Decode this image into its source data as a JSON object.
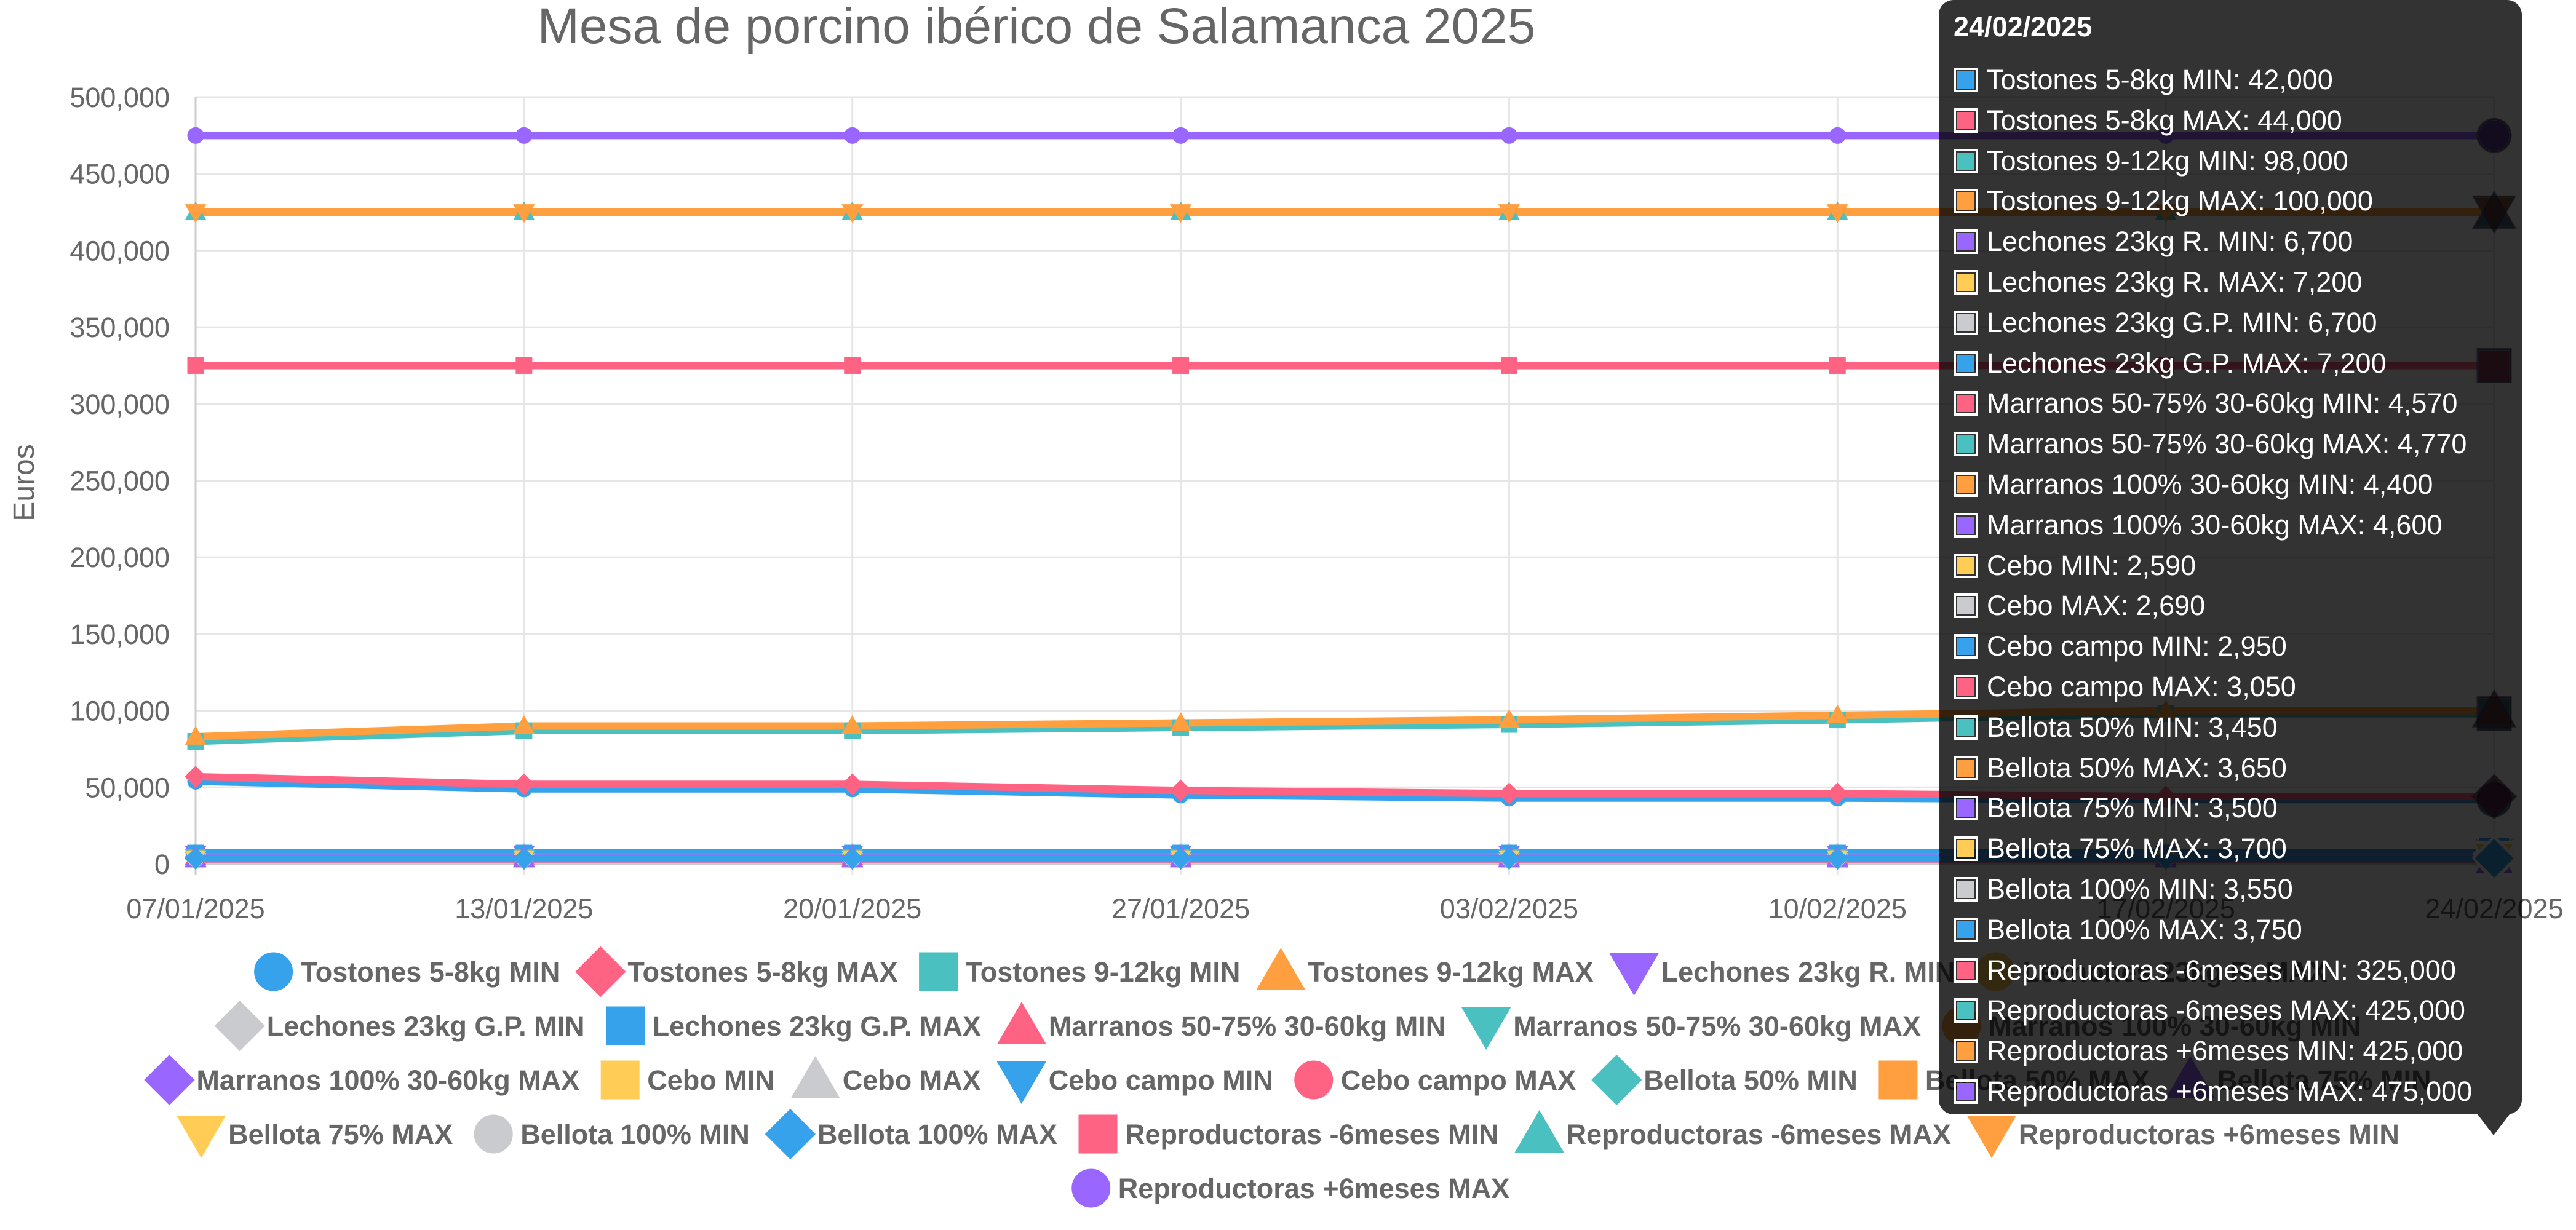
{
  "chart_data": {
    "type": "line",
    "title": "Mesa de porcino ibérico de Salamanca 2025",
    "ylabel": "Euros",
    "xlabel": "",
    "ylim": [
      0,
      500000
    ],
    "y_ticks": [
      "0",
      "50,000",
      "100,000",
      "150,000",
      "200,000",
      "250,000",
      "300,000",
      "350,000",
      "400,000",
      "450,000",
      "500,000"
    ],
    "grid": true,
    "legend_position": "bottom",
    "x": [
      "07/01/2025",
      "13/01/2025",
      "20/01/2025",
      "27/01/2025",
      "03/02/2025",
      "10/02/2025",
      "17/02/2025",
      "24/02/2025"
    ],
    "series": [
      {
        "name": "Tostones 5-8kg MIN",
        "color": "#36a2eb",
        "marker": "circle",
        "values": [
          54000,
          49000,
          49000,
          45000,
          43000,
          43000,
          42000,
          42000
        ]
      },
      {
        "name": "Tostones 5-8kg MAX",
        "color": "#ff6384",
        "marker": "diamond",
        "values": [
          57000,
          52000,
          52000,
          48000,
          46000,
          46000,
          44000,
          44000
        ]
      },
      {
        "name": "Tostones 9-12kg MIN",
        "color": "#4bc0c0",
        "marker": "square",
        "values": [
          80000,
          87000,
          87000,
          89000,
          91000,
          94000,
          98000,
          98000
        ]
      },
      {
        "name": "Tostones 9-12kg MAX",
        "color": "#ff9f40",
        "marker": "triangle",
        "values": [
          83000,
          90000,
          90000,
          92000,
          94000,
          97000,
          100000,
          100000
        ]
      },
      {
        "name": "Lechones 23kg R. MIN",
        "color": "#9966ff",
        "marker": "triangle-down",
        "values": [
          6700,
          6700,
          6700,
          6700,
          6700,
          6700,
          6700,
          6700
        ]
      },
      {
        "name": "Lechones 23kg R. MAX",
        "color": "#ffcd56",
        "marker": "circle",
        "values": [
          7200,
          7200,
          7200,
          7200,
          7200,
          7200,
          7200,
          7200
        ]
      },
      {
        "name": "Lechones 23kg G.P. MIN",
        "color": "#c9cbcf",
        "marker": "diamond",
        "values": [
          6700,
          6700,
          6700,
          6700,
          6700,
          6700,
          6700,
          6700
        ]
      },
      {
        "name": "Lechones 23kg G.P. MAX",
        "color": "#36a2eb",
        "marker": "square",
        "values": [
          7200,
          7200,
          7200,
          7200,
          7200,
          7200,
          7200,
          7200
        ]
      },
      {
        "name": "Marranos 50-75% 30-60kg MIN",
        "color": "#ff6384",
        "marker": "triangle",
        "values": [
          4570,
          4570,
          4570,
          4570,
          4570,
          4570,
          4570,
          4570
        ]
      },
      {
        "name": "Marranos 50-75% 30-60kg MAX",
        "color": "#4bc0c0",
        "marker": "triangle-down",
        "values": [
          4770,
          4770,
          4770,
          4770,
          4770,
          4770,
          4770,
          4770
        ]
      },
      {
        "name": "Marranos 100% 30-60kg MIN",
        "color": "#ff9f40",
        "marker": "circle",
        "values": [
          4400,
          4400,
          4400,
          4400,
          4400,
          4400,
          4400,
          4400
        ]
      },
      {
        "name": "Marranos 100% 30-60kg MAX",
        "color": "#9966ff",
        "marker": "diamond",
        "values": [
          4600,
          4600,
          4600,
          4600,
          4600,
          4600,
          4600,
          4600
        ]
      },
      {
        "name": "Cebo MIN",
        "color": "#ffcd56",
        "marker": "square",
        "values": [
          2590,
          2590,
          2590,
          2590,
          2590,
          2590,
          2590,
          2590
        ]
      },
      {
        "name": "Cebo MAX",
        "color": "#c9cbcf",
        "marker": "triangle",
        "values": [
          2690,
          2690,
          2690,
          2690,
          2690,
          2690,
          2690,
          2690
        ]
      },
      {
        "name": "Cebo campo MIN",
        "color": "#36a2eb",
        "marker": "triangle-down",
        "values": [
          2950,
          2950,
          2950,
          2950,
          2950,
          2950,
          2950,
          2950
        ]
      },
      {
        "name": "Cebo campo MAX",
        "color": "#ff6384",
        "marker": "circle",
        "values": [
          3050,
          3050,
          3050,
          3050,
          3050,
          3050,
          3050,
          3050
        ]
      },
      {
        "name": "Bellota 50% MIN",
        "color": "#4bc0c0",
        "marker": "diamond",
        "values": [
          3450,
          3450,
          3450,
          3450,
          3450,
          3450,
          3450,
          3450
        ]
      },
      {
        "name": "Bellota 50% MAX",
        "color": "#ff9f40",
        "marker": "square",
        "values": [
          3650,
          3650,
          3650,
          3650,
          3650,
          3650,
          3650,
          3650
        ]
      },
      {
        "name": "Bellota 75% MIN",
        "color": "#9966ff",
        "marker": "triangle",
        "values": [
          3500,
          3500,
          3500,
          3500,
          3500,
          3500,
          3500,
          3500
        ]
      },
      {
        "name": "Bellota 75% MAX",
        "color": "#ffcd56",
        "marker": "triangle-down",
        "values": [
          3700,
          3700,
          3700,
          3700,
          3700,
          3700,
          3700,
          3700
        ]
      },
      {
        "name": "Bellota 100% MIN",
        "color": "#c9cbcf",
        "marker": "circle",
        "values": [
          3550,
          3550,
          3550,
          3550,
          3550,
          3550,
          3550,
          3550
        ]
      },
      {
        "name": "Bellota 100% MAX",
        "color": "#36a2eb",
        "marker": "diamond",
        "values": [
          3750,
          3750,
          3750,
          3750,
          3750,
          3750,
          3750,
          3750
        ]
      },
      {
        "name": "Reproductoras -6meses MIN",
        "color": "#ff6384",
        "marker": "square",
        "values": [
          325000,
          325000,
          325000,
          325000,
          325000,
          325000,
          325000,
          325000
        ]
      },
      {
        "name": "Reproductoras -6meses MAX",
        "color": "#4bc0c0",
        "marker": "triangle",
        "values": [
          425000,
          425000,
          425000,
          425000,
          425000,
          425000,
          425000,
          425000
        ]
      },
      {
        "name": "Reproductoras +6meses MIN",
        "color": "#ff9f40",
        "marker": "triangle-down",
        "values": [
          425000,
          425000,
          425000,
          425000,
          425000,
          425000,
          425000,
          425000
        ]
      },
      {
        "name": "Reproductoras +6meses MAX",
        "color": "#9966ff",
        "marker": "circle",
        "values": [
          475000,
          475000,
          475000,
          475000,
          475000,
          475000,
          475000,
          475000
        ]
      }
    ]
  },
  "tooltip": {
    "title": "24/02/2025",
    "rows": [
      {
        "text": "Tostones 5-8kg MIN: 42,000",
        "color": "#36a2eb"
      },
      {
        "text": "Tostones 5-8kg MAX: 44,000",
        "color": "#ff6384"
      },
      {
        "text": "Tostones 9-12kg MIN: 98,000",
        "color": "#4bc0c0"
      },
      {
        "text": "Tostones 9-12kg MAX: 100,000",
        "color": "#ff9f40"
      },
      {
        "text": "Lechones 23kg R. MIN: 6,700",
        "color": "#9966ff"
      },
      {
        "text": "Lechones 23kg R. MAX: 7,200",
        "color": "#ffcd56"
      },
      {
        "text": "Lechones 23kg G.P. MIN: 6,700",
        "color": "#c9cbcf"
      },
      {
        "text": "Lechones 23kg G.P. MAX: 7,200",
        "color": "#36a2eb"
      },
      {
        "text": "Marranos 50-75% 30-60kg MIN: 4,570",
        "color": "#ff6384"
      },
      {
        "text": "Marranos 50-75% 30-60kg MAX: 4,770",
        "color": "#4bc0c0"
      },
      {
        "text": "Marranos 100% 30-60kg MIN: 4,400",
        "color": "#ff9f40"
      },
      {
        "text": "Marranos 100% 30-60kg MAX: 4,600",
        "color": "#9966ff"
      },
      {
        "text": "Cebo MIN: 2,590",
        "color": "#ffcd56"
      },
      {
        "text": "Cebo MAX: 2,690",
        "color": "#c9cbcf"
      },
      {
        "text": "Cebo campo MIN: 2,950",
        "color": "#36a2eb"
      },
      {
        "text": "Cebo campo MAX: 3,050",
        "color": "#ff6384"
      },
      {
        "text": "Bellota 50% MIN: 3,450",
        "color": "#4bc0c0"
      },
      {
        "text": "Bellota 50% MAX: 3,650",
        "color": "#ff9f40"
      },
      {
        "text": "Bellota 75% MIN: 3,500",
        "color": "#9966ff"
      },
      {
        "text": "Bellota 75% MAX: 3,700",
        "color": "#ffcd56"
      },
      {
        "text": "Bellota 100% MIN: 3,550",
        "color": "#c9cbcf"
      },
      {
        "text": "Bellota 100% MAX: 3,750",
        "color": "#36a2eb"
      },
      {
        "text": "Reproductoras -6meses MIN: 325,000",
        "color": "#ff6384"
      },
      {
        "text": "Reproductoras -6meses MAX: 425,000",
        "color": "#4bc0c0"
      },
      {
        "text": "Reproductoras +6meses MIN: 425,000",
        "color": "#ff9f40"
      },
      {
        "text": "Reproductoras +6meses MAX: 475,000",
        "color": "#9966ff"
      }
    ]
  }
}
